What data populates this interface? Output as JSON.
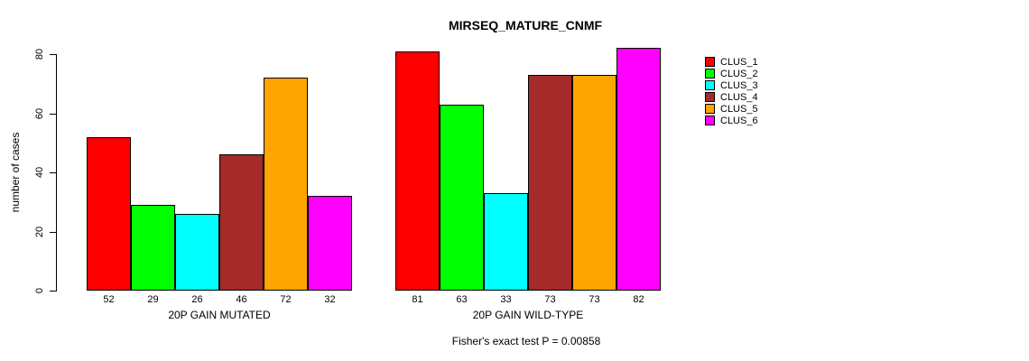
{
  "chart_data": {
    "type": "bar",
    "title": "MIRSEQ_MATURE_CNMF",
    "ylabel": "number of cases",
    "xlabel": "",
    "ylim": [
      0,
      80
    ],
    "yticks": [
      0,
      20,
      40,
      60,
      80
    ],
    "grid": false,
    "legend_position": "top-right",
    "categories": [
      "20P GAIN MUTATED",
      "20P GAIN WILD-TYPE"
    ],
    "series": [
      {
        "name": "CLUS_1",
        "color": "#FF0000",
        "values": [
          52,
          81
        ]
      },
      {
        "name": "CLUS_2",
        "color": "#00FF00",
        "values": [
          29,
          63
        ]
      },
      {
        "name": "CLUS_3",
        "color": "#00FFFF",
        "values": [
          26,
          33
        ]
      },
      {
        "name": "CLUS_4",
        "color": "#A52A2A",
        "values": [
          46,
          73
        ]
      },
      {
        "name": "CLUS_5",
        "color": "#FFA500",
        "values": [
          72,
          73
        ]
      },
      {
        "name": "CLUS_6",
        "color": "#FF00FF",
        "values": [
          32,
          82
        ]
      }
    ],
    "bar_value_labels": {
      "20P GAIN MUTATED": [
        52,
        29,
        26,
        46,
        72,
        32
      ],
      "20P GAIN WILD-TYPE": [
        81,
        63,
        33,
        73,
        73,
        82
      ]
    },
    "annotation": "Fisher's exact test P = 0.00858",
    "axis_color": "#000000",
    "background_color": "#FFFFFF"
  }
}
